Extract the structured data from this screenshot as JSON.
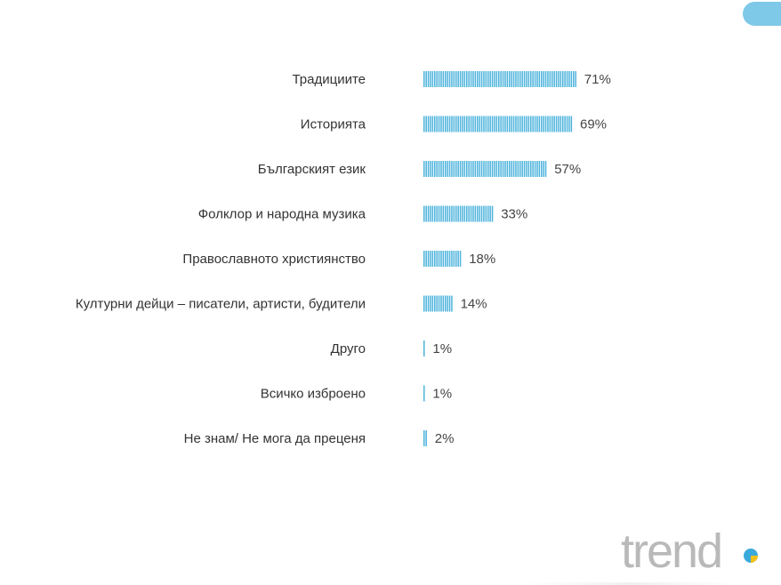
{
  "chart_data": {
    "type": "bar",
    "orientation": "horizontal",
    "categories": [
      "Традициите",
      "Историята",
      "Българският език",
      "Фолклор и народна музика",
      "Православното християнство",
      "Културни дейци – писатели, артисти, будители",
      "Друго",
      "Всичко изброено",
      "Не знам/ Не мога да преценя"
    ],
    "values": [
      71,
      69,
      57,
      33,
      18,
      14,
      1,
      1,
      2
    ],
    "value_labels": [
      "71%",
      "69%",
      "57%",
      "33%",
      "18%",
      "14%",
      "1%",
      "1%",
      "2%"
    ],
    "unit": "%",
    "xlim": [
      0,
      100
    ],
    "bar_color": "#4db3dc",
    "label_color": "#333333",
    "value_color": "#444444"
  },
  "brand": {
    "logo_text": "trend",
    "logo_color": "#b9b9b9",
    "accent_blue": "#3aa9db",
    "accent_yellow": "#f4c21a",
    "tab_color": "#7ec8e8"
  }
}
